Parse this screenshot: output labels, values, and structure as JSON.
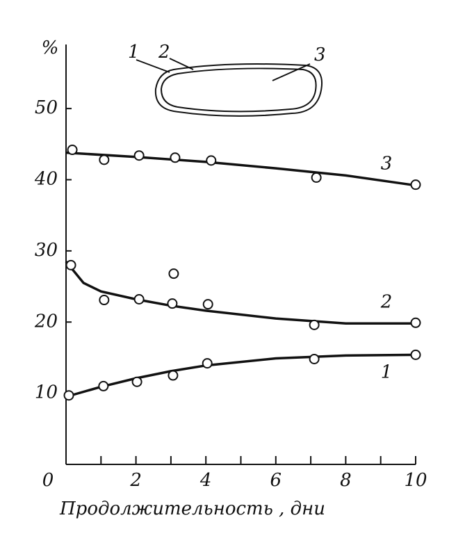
{
  "chart_data": {
    "type": "scatter",
    "ylabel": "%",
    "xlabel": "Продолжительность ,  дни",
    "xlim": [
      0,
      10
    ],
    "ylim": [
      0,
      59
    ],
    "xticks": [
      0,
      2,
      4,
      6,
      8,
      10
    ],
    "xminor_ticks": [
      1,
      3,
      5,
      7,
      9
    ],
    "yticks": [
      10,
      20,
      30,
      40,
      50
    ],
    "color": "#111111",
    "inset_labels": [
      "1",
      "2",
      "3"
    ],
    "series": [
      {
        "name": "1",
        "x": [
          0.08,
          1.07,
          2.03,
          3.06,
          4.04,
          7.1,
          10
        ],
        "values": [
          9.7,
          11.0,
          11.6,
          12.5,
          14.2,
          14.8,
          15.4
        ],
        "curve_x": [
          0,
          1,
          2,
          3,
          4,
          6,
          8,
          10
        ],
        "curve_y": [
          9.5,
          10.9,
          12.1,
          13.1,
          13.9,
          14.9,
          15.3,
          15.4
        ]
      },
      {
        "name": "2",
        "x": [
          0.14,
          1.09,
          2.09,
          3.08,
          3.04,
          4.06,
          7.1,
          10
        ],
        "values": [
          28.0,
          23.1,
          23.2,
          26.8,
          22.6,
          22.5,
          19.6,
          19.9
        ],
        "curve_x": [
          0,
          0.5,
          1,
          2,
          3,
          4,
          6,
          8,
          10
        ],
        "curve_y": [
          28.5,
          25.5,
          24.3,
          23.2,
          22.3,
          21.6,
          20.5,
          19.8,
          19.8
        ]
      },
      {
        "name": "3",
        "x": [
          0.18,
          1.09,
          2.09,
          3.12,
          4.15,
          7.16,
          10
        ],
        "values": [
          44.2,
          42.8,
          43.4,
          43.1,
          42.7,
          40.3,
          39.3
        ],
        "curve_x": [
          0,
          2,
          4,
          6,
          8,
          10
        ],
        "curve_y": [
          43.8,
          43.2,
          42.5,
          41.6,
          40.6,
          39.2
        ]
      }
    ]
  }
}
